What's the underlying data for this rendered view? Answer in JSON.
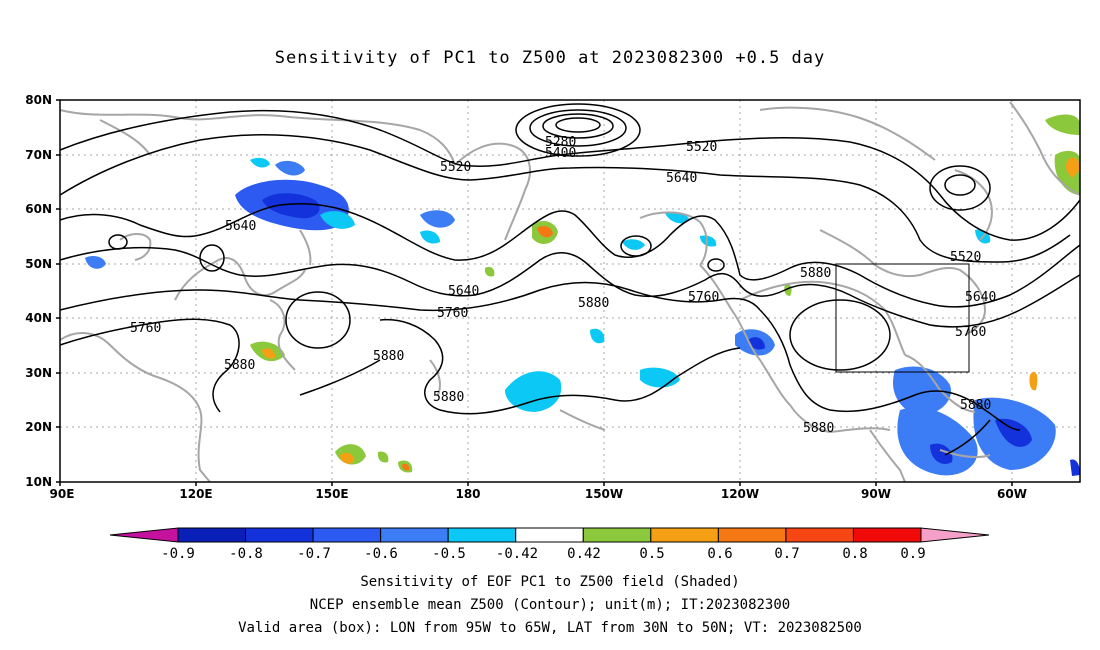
{
  "title": "Sensitivity of PC1 to Z500 at 2023082300 +0.5 day",
  "footer": {
    "line1": "Sensitivity of EOF PC1 to Z500 field (Shaded)",
    "line2": "NCEP ensemble mean Z500 (Contour); unit(m); IT:2023082300",
    "line3": "Valid area (box): LON from 95W to 65W, LAT from 30N to 50N; VT: 2023082500"
  },
  "map": {
    "lat_labels": [
      "80N",
      "70N",
      "60N",
      "50N",
      "40N",
      "30N",
      "20N",
      "10N"
    ],
    "lon_labels": [
      "90E",
      "120E",
      "150E",
      "180",
      "150W",
      "120W",
      "90W",
      "60W"
    ],
    "grid": true,
    "valid_box": {
      "lon_range": [
        "95W",
        "65W"
      ],
      "lat_range": [
        "30N",
        "50N"
      ]
    },
    "contour_labels": [
      "5280",
      "5400",
      "5520",
      "5520",
      "5520",
      "5640",
      "5640",
      "5640",
      "5640",
      "5760",
      "5760",
      "5760",
      "5760",
      "5880",
      "5880",
      "5880",
      "5880",
      "5880",
      "5880",
      "5880"
    ],
    "colors": {
      "contour": "#000000",
      "coast": "#a6a6a6",
      "grid": "#a6a6a6"
    }
  },
  "colorbar": {
    "labels": [
      "-0.9",
      "-0.8",
      "-0.7",
      "-0.6",
      "-0.5",
      "-0.42",
      "0.42",
      "0.5",
      "0.6",
      "0.7",
      "0.8",
      "0.9"
    ],
    "colors": [
      "#c4129f",
      "#0a1eb8",
      "#1432dc",
      "#2d5af0",
      "#3c7cf5",
      "#0cc8f5",
      "#ffffff",
      "#8cc83c",
      "#f5a014",
      "#f57814",
      "#f54614",
      "#f00a0a",
      "#f5a0c8"
    ]
  }
}
